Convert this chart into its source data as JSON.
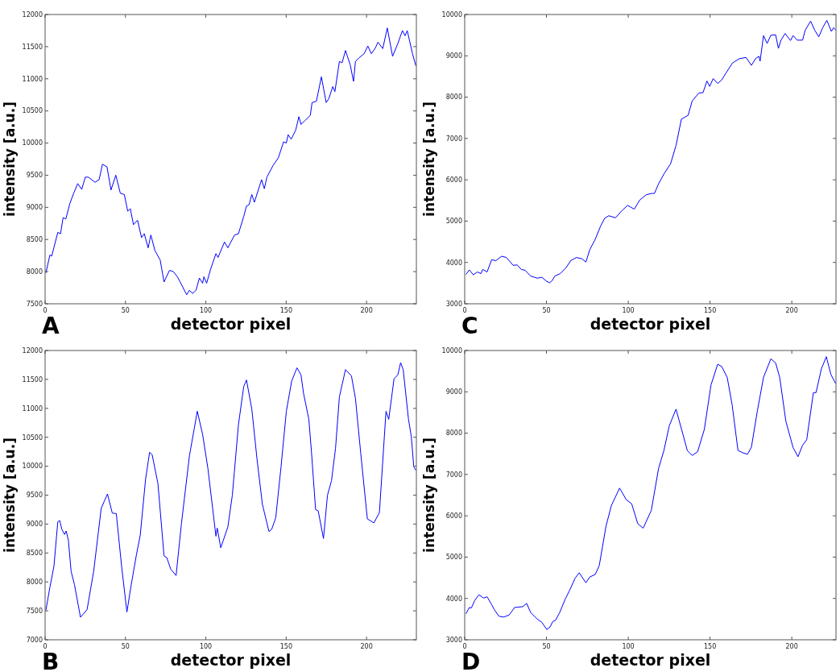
{
  "chart_data": [
    {
      "type": "line",
      "title": "A",
      "xlabel": "detector pixel",
      "ylabel": "intensity [a.u.]",
      "xlim": [
        0,
        231
      ],
      "ylim": [
        7500,
        12000
      ],
      "xticks": [
        0,
        50,
        100,
        150,
        200
      ],
      "yticks": [
        7500,
        8000,
        8500,
        9000,
        9500,
        10000,
        10500,
        11000,
        11500,
        12000
      ],
      "grid": false,
      "series": [
        {
          "color": "#0000ff",
          "x": [
            0.5,
            3,
            4.1,
            7.9,
            9.6,
            11.2,
            12.9,
            15.4,
            17.8,
            20.3,
            22.8,
            25,
            26.9,
            31.1,
            33.6,
            35.7,
            38.5,
            41,
            44,
            46.8,
            49.3,
            51.4,
            53,
            55,
            57.5,
            60,
            61.7,
            64.1,
            65.8,
            68.3,
            71.6,
            74,
            77.4,
            79.8,
            82.3,
            84,
            88.1,
            89.8,
            91.7,
            93.9,
            96,
            98,
            98.8,
            100.5,
            103,
            106.3,
            107.6,
            111.6,
            113.7,
            117.9,
            120.3,
            123.6,
            125.3,
            126.9,
            128.6,
            130.2,
            134.7,
            136.4,
            138,
            141.8,
            145.1,
            148.4,
            150.1,
            151.2,
            153.1,
            155.9,
            157.9,
            159.2,
            161.7,
            165,
            166.1,
            168.8,
            171.9,
            174.9,
            176.5,
            179,
            180.3,
            183.1,
            184.8,
            186.9,
            189.8,
            191.9,
            193.1,
            195.5,
            198.5,
            200.8,
            203,
            205.5,
            207.1,
            210.1,
            212.9,
            216.2,
            219.5,
            222.3,
            224,
            225.3,
            228.6,
            230.7
          ],
          "values": [
            7980,
            8260,
            8240,
            8610,
            8590,
            8840,
            8820,
            9060,
            9220,
            9370,
            9280,
            9470,
            9470,
            9390,
            9430,
            9670,
            9630,
            9270,
            9500,
            9220,
            9200,
            8940,
            8980,
            8730,
            8800,
            8530,
            8590,
            8370,
            8570,
            8330,
            8180,
            7840,
            8020,
            8000,
            7920,
            7840,
            7640,
            7710,
            7660,
            7710,
            7900,
            7820,
            7920,
            7820,
            8040,
            8280,
            8220,
            8460,
            8370,
            8570,
            8590,
            8860,
            9020,
            9040,
            9200,
            9080,
            9430,
            9290,
            9470,
            9650,
            9770,
            10020,
            10000,
            10130,
            10060,
            10200,
            10410,
            10290,
            10350,
            10430,
            10630,
            10650,
            11030,
            10630,
            10690,
            10880,
            10800,
            11270,
            11250,
            11440,
            11220,
            10960,
            11270,
            11330,
            11390,
            11510,
            11390,
            11480,
            11570,
            11470,
            11790,
            11350,
            11550,
            11750,
            11670,
            11750,
            11390,
            11200
          ]
        }
      ]
    },
    {
      "type": "line",
      "title": "C",
      "xlabel": "detector pixel",
      "ylabel": "intensity [a.u.]",
      "xlim": [
        0,
        227
      ],
      "ylim": [
        3000,
        10000
      ],
      "xticks": [
        0,
        50,
        100,
        150,
        200
      ],
      "yticks": [
        3000,
        4000,
        5000,
        6000,
        7000,
        8000,
        9000,
        10000
      ],
      "grid": false,
      "series": [
        {
          "color": "#0000ff",
          "x": [
            0.8,
            2.8,
            5.3,
            7.7,
            9.9,
            11,
            13.7,
            16.5,
            18.9,
            22.6,
            25.5,
            29.6,
            32.1,
            34.6,
            37,
            40.3,
            44.4,
            47.2,
            50.2,
            51.9,
            53.5,
            55.1,
            58.4,
            61.7,
            65,
            68.3,
            71.6,
            74.1,
            76.5,
            79.8,
            83.1,
            85.6,
            88.1,
            92.2,
            96.3,
            99.6,
            103.7,
            107,
            111.1,
            114.4,
            116,
            118.5,
            121.8,
            125.9,
            129.2,
            132.5,
            136.6,
            139.1,
            143.2,
            145.7,
            148.1,
            149.8,
            151.9,
            154.7,
            157.2,
            159.7,
            163.8,
            167.9,
            172,
            175.3,
            177.8,
            179.9,
            180.6,
            182.7,
            184.9,
            187.2,
            190.1,
            191.8,
            193.4,
            195.9,
            199.2,
            200.8,
            203.3,
            206.6,
            208.2,
            211.5,
            214,
            216.5,
            218.9,
            221.4,
            224.2,
            225.5,
            226.8
          ],
          "values": [
            3710,
            3820,
            3700,
            3770,
            3730,
            3830,
            3770,
            4070,
            4040,
            4150,
            4120,
            3930,
            3940,
            3830,
            3810,
            3670,
            3620,
            3640,
            3540,
            3510,
            3560,
            3670,
            3730,
            3860,
            4050,
            4120,
            4090,
            4010,
            4310,
            4560,
            4880,
            5070,
            5130,
            5080,
            5260,
            5380,
            5290,
            5510,
            5640,
            5670,
            5670,
            5900,
            6140,
            6390,
            6830,
            7470,
            7560,
            7910,
            8100,
            8110,
            8390,
            8260,
            8450,
            8330,
            8420,
            8580,
            8830,
            8930,
            8960,
            8770,
            8930,
            8990,
            8870,
            9490,
            9300,
            9500,
            9510,
            9180,
            9380,
            9540,
            9370,
            9490,
            9380,
            9380,
            9620,
            9840,
            9620,
            9460,
            9680,
            9860,
            9590,
            9680,
            9630
          ]
        }
      ]
    },
    {
      "type": "line",
      "title": "B",
      "xlabel": "detector pixel",
      "ylabel": "intensity [a.u.]",
      "xlim": [
        0,
        231
      ],
      "ylim": [
        7000,
        12000
      ],
      "xticks": [
        0,
        50,
        100,
        150,
        200
      ],
      "yticks": [
        7000,
        7500,
        8000,
        8500,
        9000,
        9500,
        10000,
        10500,
        11000,
        11500,
        12000
      ],
      "grid": false,
      "series": [
        {
          "color": "#0000ff",
          "x": [
            0.5,
            3,
            5.5,
            7.9,
            9.1,
            10.4,
            12.1,
            13.1,
            14.5,
            16.2,
            18.3,
            22,
            26.1,
            30.2,
            34.9,
            36.9,
            38.8,
            41.8,
            44.3,
            47.6,
            50.9,
            53.4,
            56.7,
            59.2,
            62.5,
            65,
            66.6,
            70.2,
            74,
            75.7,
            78.2,
            81.5,
            84.8,
            89.8,
            94.7,
            98,
            101.3,
            106.3,
            107.1,
            109.3,
            113.7,
            116.5,
            120.3,
            123.6,
            125.3,
            128.6,
            131.9,
            135.2,
            139.3,
            141,
            143.5,
            146.8,
            150.1,
            153.4,
            156.7,
            159.2,
            160.8,
            164.1,
            165.8,
            168.3,
            169.9,
            173.2,
            175.7,
            178.2,
            180.7,
            183.1,
            186.9,
            190.6,
            193.1,
            196.4,
            200.5,
            204.6,
            208,
            212.1,
            213.8,
            217.1,
            219.5,
            221.2,
            222.8,
            226.1,
            227.8,
            229.4,
            230.7
          ],
          "values": [
            7510,
            7910,
            8270,
            9040,
            9060,
            8910,
            8820,
            8880,
            8720,
            8180,
            7950,
            7390,
            7520,
            8180,
            9270,
            9400,
            9520,
            9190,
            9180,
            8270,
            7480,
            7920,
            8450,
            8810,
            9770,
            10240,
            10200,
            9700,
            8450,
            8420,
            8220,
            8110,
            9000,
            10180,
            10950,
            10550,
            9960,
            8790,
            8930,
            8590,
            8950,
            9500,
            10720,
            11380,
            11490,
            10990,
            10110,
            9340,
            8870,
            8910,
            9110,
            9990,
            10950,
            11470,
            11700,
            11580,
            11260,
            10810,
            10220,
            9250,
            9230,
            8750,
            9500,
            9750,
            10310,
            11200,
            11670,
            11560,
            11170,
            10220,
            9090,
            9020,
            9200,
            10950,
            10810,
            11510,
            11580,
            11790,
            11670,
            10810,
            10520,
            9990,
            9930
          ]
        }
      ]
    },
    {
      "type": "line",
      "title": "D",
      "xlabel": "detector pixel",
      "ylabel": "intensity [a.u.]",
      "xlim": [
        0,
        227
      ],
      "ylim": [
        3000,
        10000
      ],
      "xticks": [
        0,
        50,
        100,
        150,
        200
      ],
      "yticks": [
        3000,
        4000,
        5000,
        6000,
        7000,
        8000,
        9000,
        10000
      ],
      "grid": false,
      "series": [
        {
          "color": "#0000ff",
          "x": [
            0.8,
            2.8,
            4.1,
            6.1,
            8.7,
            11.5,
            13.7,
            16.5,
            18.1,
            20.9,
            23.9,
            27.2,
            30.5,
            32.4,
            35.4,
            37.9,
            40.3,
            44.4,
            47.2,
            50.2,
            52.2,
            53.8,
            55.5,
            58.1,
            61.4,
            64.2,
            67.5,
            70,
            74.1,
            76.5,
            79.8,
            82.3,
            86.4,
            89.7,
            94.7,
            98.8,
            102.1,
            105.8,
            109.1,
            114.1,
            118.5,
            121.8,
            125.1,
            129.2,
            133.3,
            136.1,
            139.1,
            142.4,
            146.5,
            150.6,
            154.7,
            157.2,
            160.5,
            163.5,
            167.1,
            170.4,
            172.9,
            175.3,
            178.9,
            182.7,
            187.2,
            190.1,
            192.6,
            196.4,
            200.8,
            203.8,
            206.6,
            209.1,
            213.2,
            214.8,
            218.1,
            221.1,
            223.9,
            226.8
          ],
          "values": [
            3630,
            3780,
            3770,
            3950,
            4090,
            4010,
            4040,
            3850,
            3730,
            3570,
            3550,
            3600,
            3780,
            3790,
            3800,
            3880,
            3660,
            3500,
            3420,
            3250,
            3310,
            3440,
            3470,
            3660,
            3980,
            4200,
            4490,
            4620,
            4380,
            4520,
            4580,
            4800,
            5750,
            6250,
            6670,
            6390,
            6290,
            5810,
            5700,
            6130,
            7140,
            7580,
            8180,
            8580,
            7990,
            7580,
            7460,
            7550,
            8090,
            9170,
            9670,
            9610,
            9350,
            8690,
            7580,
            7520,
            7490,
            7660,
            8530,
            9350,
            9800,
            9700,
            9350,
            8280,
            7650,
            7430,
            7710,
            7840,
            8980,
            8980,
            9560,
            9850,
            9420,
            9200
          ]
        }
      ]
    }
  ]
}
